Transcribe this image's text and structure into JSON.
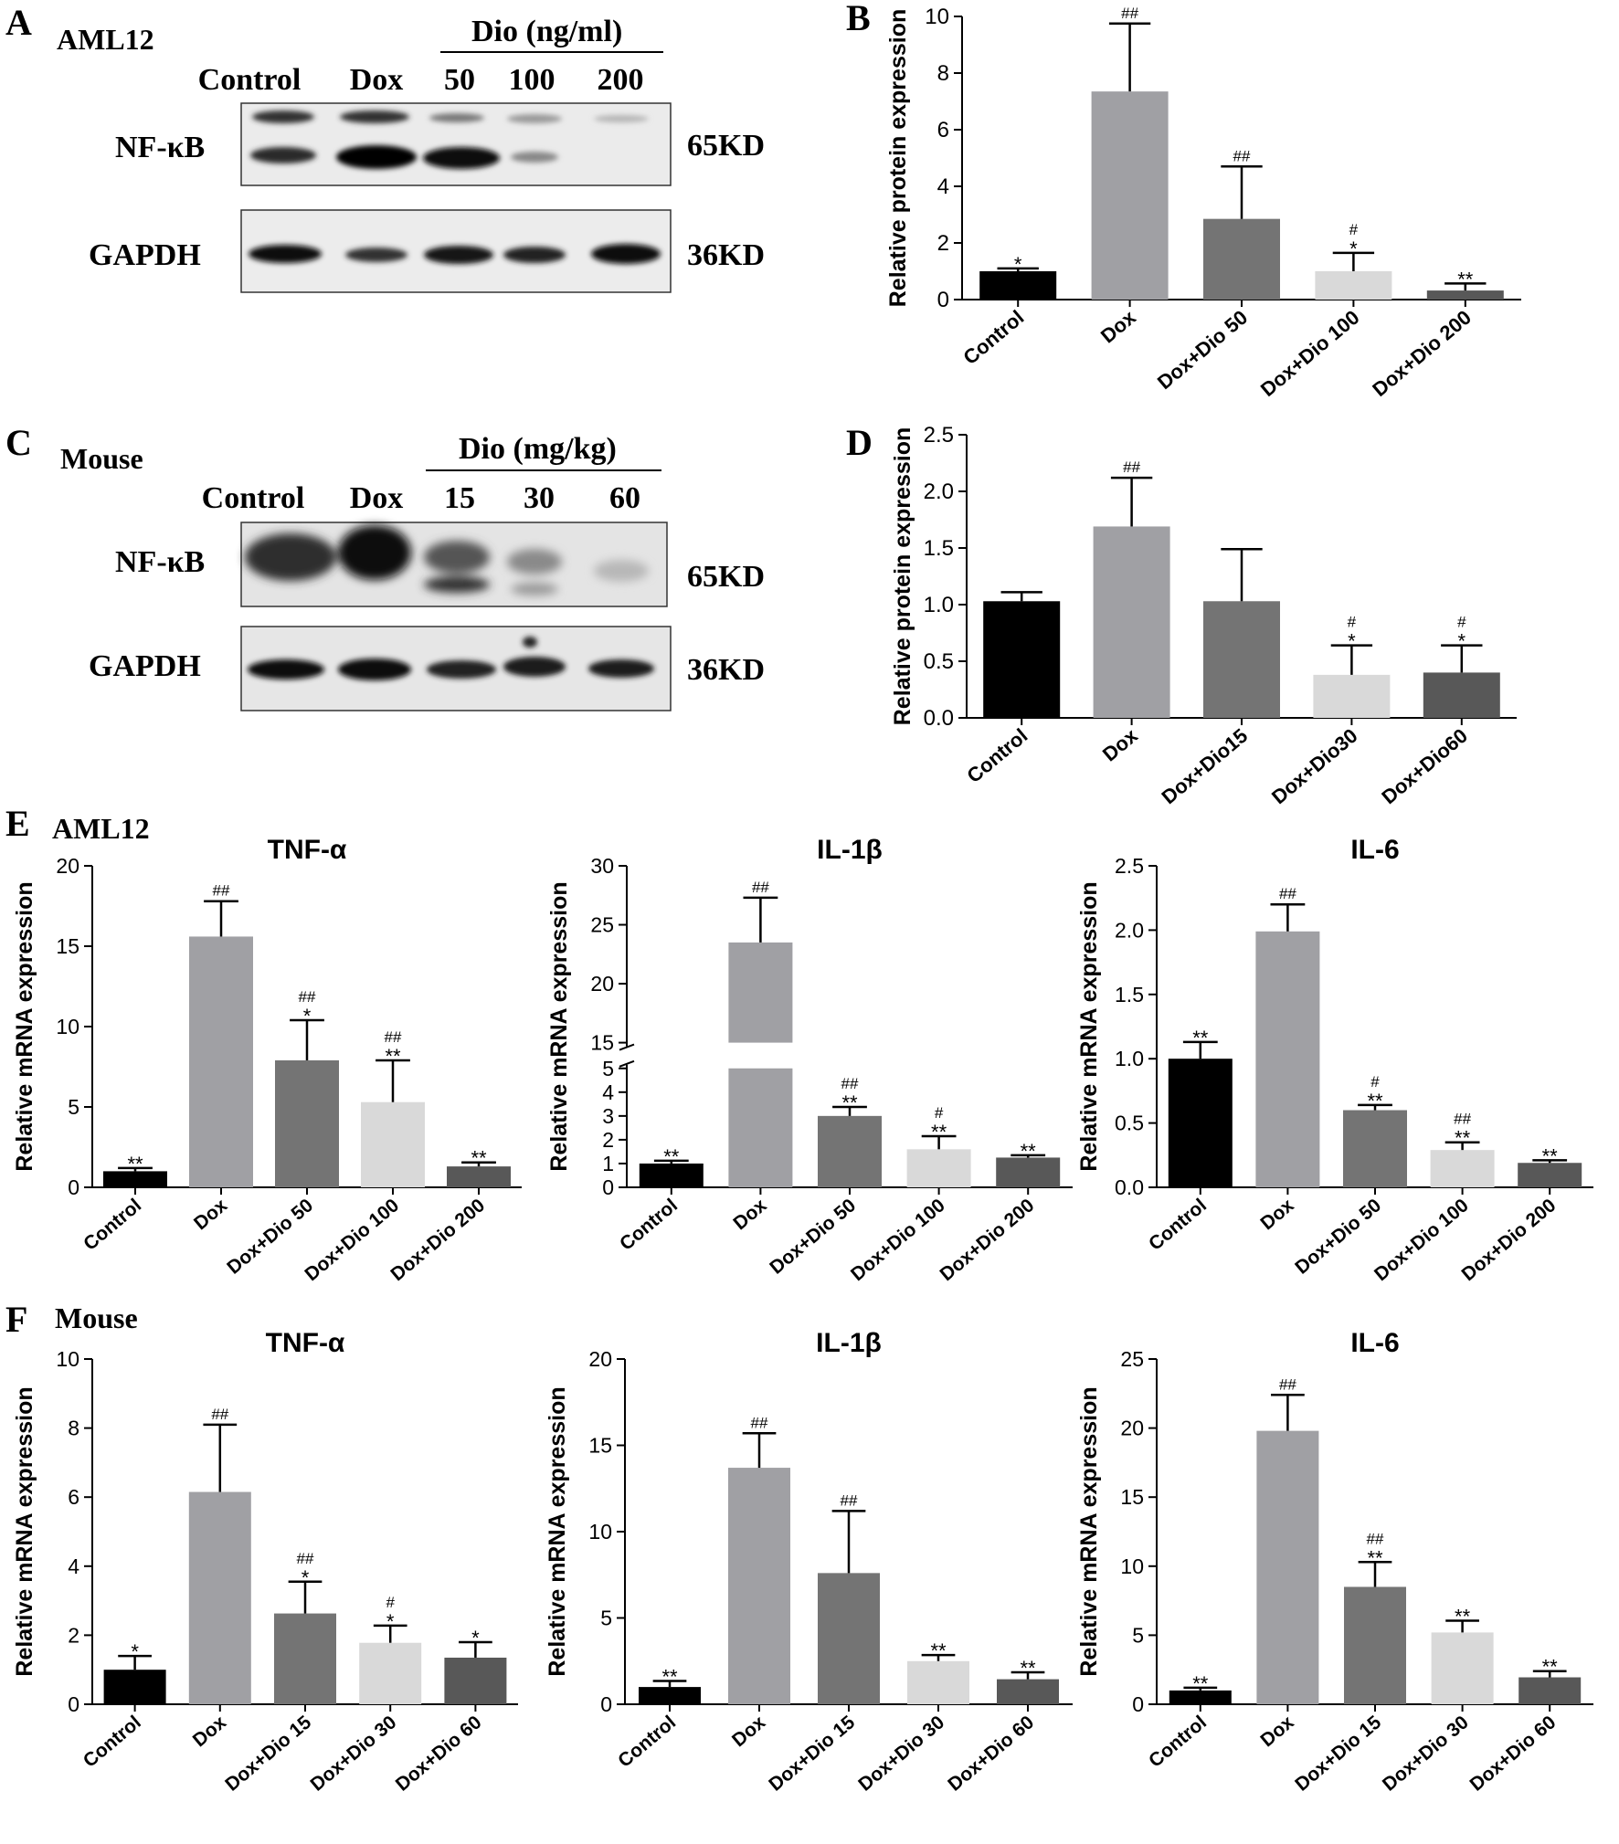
{
  "panels": {
    "A": {
      "letter": "A",
      "model": "AML12",
      "treatment": "Dio (ng/ml)",
      "lanes": [
        "Control",
        "Dox",
        "50",
        "100",
        "200"
      ],
      "proteins": [
        {
          "name": "NF-κB",
          "size": "65KD"
        },
        {
          "name": "GAPDH",
          "size": "36KD"
        }
      ]
    },
    "C": {
      "letter": "C",
      "model": "Mouse",
      "treatment": "Dio (mg/kg)",
      "lanes": [
        "Control",
        "Dox",
        "15",
        "30",
        "60"
      ],
      "proteins": [
        {
          "name": "NF-κB",
          "size": "65KD"
        },
        {
          "name": "GAPDH",
          "size": "36KD"
        }
      ]
    },
    "E": {
      "letter": "E",
      "model": "AML12"
    },
    "F": {
      "letter": "F",
      "model": "Mouse"
    }
  },
  "colors": {
    "bars": [
      "#000000",
      "#a0a0a4",
      "#747474",
      "#d9d9d9",
      "#585858"
    ]
  },
  "chart_data": [
    {
      "id": "B",
      "letter": "B",
      "type": "bar",
      "title": "",
      "xlabel": "",
      "ylabel": "Relative protein expression",
      "categories": [
        "Control",
        "Dox",
        "Dox+Dio 50",
        "Dox+Dio 100",
        "Dox+Dio 200"
      ],
      "values": [
        1.0,
        7.35,
        2.85,
        1.0,
        0.32
      ],
      "errors": [
        0.1,
        2.4,
        1.85,
        0.65,
        0.25
      ],
      "annotations": [
        [
          "*"
        ],
        [
          "##"
        ],
        [
          "##"
        ],
        [
          "#",
          "*"
        ],
        [
          "**"
        ]
      ],
      "ylim": [
        0,
        10
      ],
      "yticks": [
        "0",
        "2",
        "4",
        "6",
        "8",
        "10"
      ]
    },
    {
      "id": "D",
      "letter": "D",
      "type": "bar",
      "title": "",
      "xlabel": "",
      "ylabel": "Relative protein expression",
      "categories": [
        "Control",
        "Dox",
        "Dox+Dio15",
        "Dox+Dio30",
        "Dox+Dio60"
      ],
      "values": [
        1.03,
        1.69,
        1.03,
        0.38,
        0.4
      ],
      "errors": [
        0.08,
        0.43,
        0.46,
        0.26,
        0.24
      ],
      "annotations": [
        [],
        [
          "##"
        ],
        [],
        [
          "#",
          "*"
        ],
        [
          "#",
          "*"
        ]
      ],
      "ylim": [
        0,
        2.5
      ],
      "yticks": [
        "0.0",
        "0.5",
        "1.0",
        "1.5",
        "2.0",
        "2.5"
      ]
    },
    {
      "id": "E1",
      "type": "bar",
      "title": "TNF-α",
      "xlabel": "",
      "ylabel": "Relative mRNA expression",
      "categories": [
        "Control",
        "Dox",
        "Dox+Dio 50",
        "Dox+Dio 100",
        "Dox+Dio 200"
      ],
      "values": [
        1.0,
        15.6,
        7.9,
        5.3,
        1.3
      ],
      "errors": [
        0.2,
        2.2,
        2.5,
        2.6,
        0.25
      ],
      "annotations": [
        [
          "**"
        ],
        [
          "##"
        ],
        [
          "##",
          "*"
        ],
        [
          "##",
          "**"
        ],
        [
          "**"
        ]
      ],
      "ylim": [
        0,
        20
      ],
      "yticks": [
        "0",
        "5",
        "10",
        "15",
        "20"
      ]
    },
    {
      "id": "E2",
      "type": "bar",
      "title": "IL-1β",
      "xlabel": "",
      "ylabel": "Relative mRNA expression",
      "categories": [
        "Control",
        "Dox",
        "Dox+Dio 50",
        "Dox+Dio 100",
        "Dox+Dio 200"
      ],
      "values": [
        1.0,
        23.5,
        3.0,
        1.6,
        1.25
      ],
      "errors": [
        0.12,
        3.8,
        0.38,
        0.55,
        0.1
      ],
      "annotations": [
        [
          "**"
        ],
        [
          "##"
        ],
        [
          "##",
          "**"
        ],
        [
          "#",
          "**"
        ],
        [
          "**"
        ]
      ],
      "axis_break": [
        5,
        15
      ],
      "ylim": [
        0,
        30
      ],
      "yticks": [
        "0",
        "1",
        "2",
        "3",
        "4",
        "5",
        "15",
        "20",
        "25",
        "30"
      ]
    },
    {
      "id": "E3",
      "type": "bar",
      "title": "IL-6",
      "xlabel": "",
      "ylabel": "Relative mRNA expression",
      "categories": [
        "Control",
        "Dox",
        "Dox+Dio 50",
        "Dox+Dio 100",
        "Dox+Dio 200"
      ],
      "values": [
        1.0,
        1.99,
        0.6,
        0.29,
        0.19
      ],
      "errors": [
        0.13,
        0.21,
        0.04,
        0.06,
        0.02
      ],
      "annotations": [
        [
          "**"
        ],
        [
          "##"
        ],
        [
          "#",
          "**"
        ],
        [
          "##",
          "**"
        ],
        [
          "**"
        ]
      ],
      "ylim": [
        0,
        2.5
      ],
      "yticks": [
        "0.0",
        "0.5",
        "1.0",
        "1.5",
        "2.0",
        "2.5"
      ]
    },
    {
      "id": "F1",
      "type": "bar",
      "title": "TNF-α",
      "xlabel": "",
      "ylabel": "Relative mRNA expression",
      "categories": [
        "Control",
        "Dox",
        "Dox+Dio 15",
        "Dox+Dio 30",
        "Dox+Dio 60"
      ],
      "values": [
        1.0,
        6.15,
        2.63,
        1.78,
        1.35
      ],
      "errors": [
        0.4,
        1.95,
        0.92,
        0.5,
        0.45
      ],
      "annotations": [
        [
          "*"
        ],
        [
          "##"
        ],
        [
          "##",
          "*"
        ],
        [
          "#",
          "*"
        ],
        [
          "*"
        ]
      ],
      "ylim": [
        0,
        10
      ],
      "yticks": [
        "0",
        "2",
        "4",
        "6",
        "8",
        "10"
      ]
    },
    {
      "id": "F2",
      "type": "bar",
      "title": "IL-1β",
      "xlabel": "",
      "ylabel": "Relative mRNA expression",
      "categories": [
        "Control",
        "Dox",
        "Dox+Dio 15",
        "Dox+Dio 30",
        "Dox+Dio 60"
      ],
      "values": [
        1.0,
        13.7,
        7.6,
        2.5,
        1.45
      ],
      "errors": [
        0.35,
        2.0,
        3.6,
        0.35,
        0.4
      ],
      "annotations": [
        [
          "**"
        ],
        [
          "##"
        ],
        [
          "##"
        ],
        [
          "**"
        ],
        [
          "**"
        ]
      ],
      "ylim": [
        0,
        20
      ],
      "yticks": [
        "0",
        "5",
        "10",
        "15",
        "20"
      ]
    },
    {
      "id": "F3",
      "type": "bar",
      "title": "IL-6",
      "xlabel": "",
      "ylabel": "Relative mRNA expression",
      "categories": [
        "Control",
        "Dox",
        "Dox+Dio 15",
        "Dox+Dio 30",
        "Dox+Dio 60"
      ],
      "values": [
        1.0,
        19.8,
        8.5,
        5.2,
        1.95
      ],
      "errors": [
        0.2,
        2.6,
        1.8,
        0.85,
        0.45
      ],
      "annotations": [
        [
          "**"
        ],
        [
          "##"
        ],
        [
          "##",
          "**"
        ],
        [
          "**"
        ],
        [
          "**"
        ]
      ],
      "ylim": [
        0,
        25
      ],
      "yticks": [
        "0",
        "5",
        "10",
        "15",
        "20",
        "25"
      ]
    }
  ]
}
